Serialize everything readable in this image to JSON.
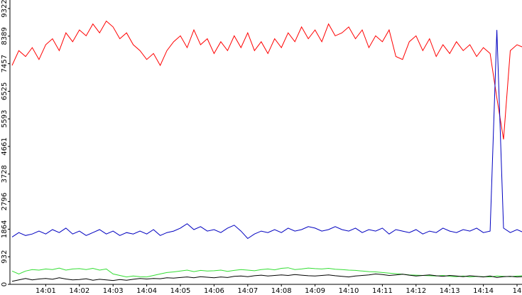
{
  "chart_data": {
    "type": "line",
    "categories": [
      null,
      null,
      null,
      null,
      null,
      "14:01",
      null,
      null,
      null,
      null,
      "14:02",
      null,
      null,
      null,
      null,
      "14:03",
      null,
      null,
      null,
      null,
      "14:04",
      null,
      null,
      null,
      null,
      "14:05",
      null,
      null,
      null,
      null,
      "14:06",
      null,
      null,
      null,
      null,
      "14:07",
      null,
      null,
      null,
      null,
      "14:08",
      null,
      null,
      null,
      null,
      "14:09",
      null,
      null,
      null,
      null,
      "14:10",
      null,
      null,
      null,
      null,
      "14:11",
      null,
      null,
      null,
      null,
      "14:12",
      null,
      null,
      null,
      null,
      "14:13",
      null,
      null,
      null,
      null,
      "14:14",
      null,
      null,
      null,
      null,
      "14",
      null
    ],
    "series": [
      {
        "color": "#ff0000",
        "values": [
          7400,
          7900,
          7700,
          8000,
          7600,
          8100,
          8300,
          7900,
          8500,
          8200,
          8600,
          8400,
          8800,
          8500,
          8900,
          8700,
          8300,
          8500,
          8100,
          7900,
          7600,
          7800,
          7400,
          7900,
          8200,
          8400,
          8000,
          8600,
          8100,
          8300,
          7800,
          8200,
          7900,
          8400,
          8000,
          8500,
          7900,
          8200,
          7800,
          8300,
          8000,
          8500,
          8200,
          8700,
          8300,
          8600,
          8200,
          8800,
          8400,
          8500,
          8700,
          8300,
          8600,
          8000,
          8400,
          8200,
          8600,
          7700,
          7600,
          8200,
          8400,
          7900,
          8300,
          7700,
          8100,
          7800,
          8200,
          7900,
          8100,
          7700,
          8000,
          7800,
          6300,
          4900,
          7900,
          8100,
          8000
        ]
      },
      {
        "color": "#0000c0",
        "values": [
          1600,
          1750,
          1650,
          1700,
          1800,
          1700,
          1850,
          1750,
          1900,
          1700,
          1800,
          1650,
          1750,
          1850,
          1700,
          1800,
          1650,
          1750,
          1700,
          1800,
          1700,
          1850,
          1650,
          1750,
          1800,
          1900,
          2050,
          1850,
          1950,
          1800,
          1850,
          1750,
          1900,
          2000,
          1800,
          1550,
          1700,
          1800,
          1750,
          1850,
          1750,
          1900,
          1800,
          1850,
          1950,
          1900,
          1800,
          1850,
          1950,
          1850,
          1800,
          1900,
          1750,
          1850,
          1800,
          1900,
          1700,
          1850,
          1800,
          1750,
          1850,
          1700,
          1800,
          1750,
          1900,
          1800,
          1750,
          1850,
          1800,
          1900,
          1750,
          1800,
          8600,
          1900,
          1750,
          1850,
          1750
        ]
      },
      {
        "color": "#33dd33",
        "values": [
          450,
          350,
          450,
          500,
          480,
          520,
          500,
          550,
          480,
          520,
          530,
          500,
          540,
          480,
          520,
          350,
          300,
          250,
          280,
          260,
          250,
          300,
          350,
          400,
          420,
          450,
          480,
          430,
          470,
          450,
          460,
          480,
          440,
          470,
          500,
          480,
          460,
          500,
          520,
          490,
          540,
          560,
          500,
          520,
          550,
          530,
          520,
          540,
          510,
          500,
          480,
          470,
          450,
          430,
          420,
          400,
          380,
          360,
          340,
          320,
          310,
          300,
          290,
          280,
          300,
          270,
          260,
          280,
          250,
          270,
          260,
          250,
          280,
          270,
          260,
          280,
          290
        ]
      },
      {
        "color": "#000000",
        "values": [
          100,
          150,
          200,
          150,
          180,
          200,
          170,
          220,
          180,
          150,
          160,
          190,
          140,
          170,
          150,
          130,
          160,
          140,
          170,
          200,
          180,
          200,
          190,
          220,
          210,
          230,
          250,
          220,
          260,
          240,
          220,
          250,
          230,
          270,
          280,
          260,
          290,
          310,
          280,
          300,
          320,
          300,
          330,
          310,
          290,
          280,
          300,
          320,
          290,
          270,
          250,
          280,
          300,
          320,
          350,
          330,
          300,
          320,
          340,
          310,
          280,
          300,
          320,
          290,
          270,
          300,
          280,
          260,
          290,
          270,
          250,
          280,
          230,
          260,
          270,
          250,
          260
        ]
      }
    ],
    "ylim": [
      0,
      9322
    ],
    "yticks": [
      0,
      932,
      1864,
      2796,
      3728,
      4661,
      5593,
      6525,
      7457,
      8389,
      9322
    ]
  }
}
